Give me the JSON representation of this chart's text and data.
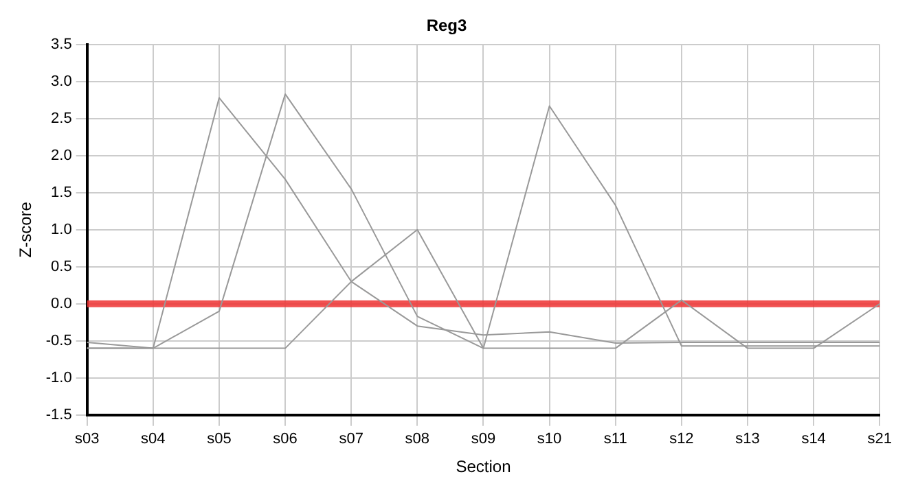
{
  "chart_data": {
    "type": "line",
    "title": "Reg3",
    "xlabel": "Section",
    "ylabel": "Z-score",
    "categories": [
      "s03",
      "s04",
      "s05",
      "s06",
      "s07",
      "s08",
      "s09",
      "s10",
      "s11",
      "s12",
      "s13",
      "s14",
      "s21"
    ],
    "series": [
      {
        "color": "#999999",
        "values": [
          -0.52,
          -0.6,
          2.78,
          1.68,
          0.3,
          -0.3,
          -0.42,
          -0.38,
          -0.53,
          -0.52,
          -0.52,
          -0.52,
          -0.52
        ]
      },
      {
        "color": "#999999",
        "values": [
          -0.6,
          -0.6,
          -0.1,
          2.83,
          1.55,
          -0.17,
          -0.6,
          2.67,
          1.33,
          -0.57,
          -0.57,
          -0.57,
          -0.57
        ]
      },
      {
        "color": "#999999",
        "values": [
          -0.6,
          -0.6,
          -0.6,
          -0.6,
          0.3,
          1.0,
          -0.6,
          -0.6,
          -0.6,
          0.05,
          -0.6,
          -0.6,
          0.0
        ]
      }
    ],
    "ylim": [
      -1.5,
      3.5
    ],
    "yticks": [
      {
        "value": -1.5,
        "label": "-1.5"
      },
      {
        "value": -1,
        "label": "-1.0"
      },
      {
        "value": -0.5,
        "label": "-0.5"
      },
      {
        "value": 0,
        "label": "0.0"
      },
      {
        "value": 0.5,
        "label": "0.5"
      },
      {
        "value": 1,
        "label": "1.0"
      },
      {
        "value": 1.5,
        "label": "1.5"
      },
      {
        "value": 2,
        "label": "2.0"
      },
      {
        "value": 2.5,
        "label": "2.5"
      },
      {
        "value": 3,
        "label": "3.0"
      },
      {
        "value": 3.5,
        "label": "3.5"
      }
    ],
    "ref_lines": [
      {
        "axis": "y",
        "value": 0,
        "color": "#ee3333"
      }
    ],
    "grid": true,
    "marker": "none",
    "line_style": "solid"
  }
}
